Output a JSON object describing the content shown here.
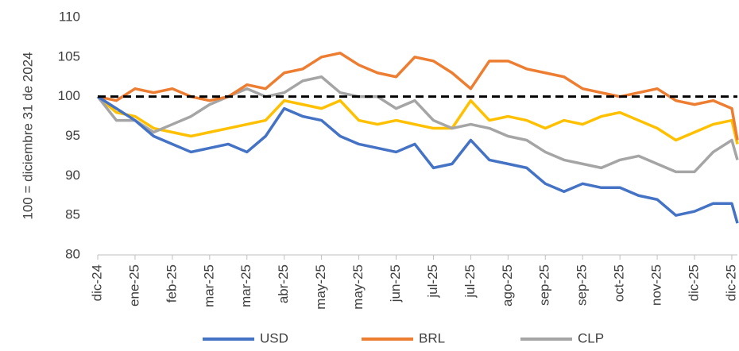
{
  "chart_data": {
    "type": "line",
    "y_label": "100 = diciembre 31 de 2024",
    "x": [
      0,
      0.5,
      1,
      1.5,
      2,
      2.5,
      3,
      3.5,
      4,
      4.5,
      5,
      5.5,
      6,
      6.5,
      7,
      7.5,
      8,
      8.5,
      9,
      9.5,
      10,
      10.5,
      11,
      11.5,
      12,
      12.5,
      13,
      13.5,
      14,
      14.5,
      15,
      15.5,
      16,
      16.5,
      17,
      17.15
    ],
    "xlim": [
      0,
      17.15
    ],
    "xticks": [
      {
        "value": 0,
        "label": "dic-24"
      },
      {
        "value": 1,
        "label": "ene-25"
      },
      {
        "value": 2,
        "label": "feb-25"
      },
      {
        "value": 3,
        "label": "mar-25"
      },
      {
        "value": 4,
        "label": "mar-25"
      },
      {
        "value": 5,
        "label": "abr-25"
      },
      {
        "value": 6,
        "label": "may-25"
      },
      {
        "value": 7,
        "label": "may-25"
      },
      {
        "value": 8,
        "label": "jun-25"
      },
      {
        "value": 9,
        "label": "jul-25"
      },
      {
        "value": 10,
        "label": "jul-25"
      },
      {
        "value": 11,
        "label": "ago-25"
      },
      {
        "value": 12,
        "label": "sep-25"
      },
      {
        "value": 13,
        "label": "sep-25"
      },
      {
        "value": 14,
        "label": "oct-25"
      },
      {
        "value": 15,
        "label": "nov-25"
      },
      {
        "value": 16,
        "label": "dic-25"
      },
      {
        "value": 17,
        "label": "dic-25"
      }
    ],
    "ylim": [
      80,
      110
    ],
    "yticks": [
      80,
      85,
      90,
      95,
      100,
      105,
      110
    ],
    "grid": false,
    "legend": "bottom",
    "reference_line": {
      "value": 100,
      "color": "#000000"
    },
    "series": [
      {
        "color": "#ffc000",
        "values": [
          100,
          98,
          97.5,
          96,
          95.5,
          95,
          95.5,
          96,
          96.5,
          97,
          99.5,
          99,
          98.5,
          99.5,
          97,
          96.5,
          97,
          96.5,
          96,
          96,
          99.5,
          97,
          97.5,
          97,
          96,
          97,
          96.5,
          97.5,
          98,
          97,
          96,
          94.5,
          95.5,
          96.5,
          97,
          94
        ]
      },
      {
        "name": "CLP",
        "color": "#a5a5a5",
        "values": [
          100,
          97,
          97,
          95.5,
          96.5,
          97.5,
          99,
          100,
          101,
          100,
          100.5,
          102,
          102.5,
          100.5,
          100,
          100,
          98.5,
          99.5,
          97,
          96,
          96.5,
          96,
          95,
          94.5,
          93,
          92,
          91.5,
          91,
          92,
          92.5,
          91.5,
          90.5,
          90.5,
          93,
          94.5,
          92
        ]
      },
      {
        "name": "BRL",
        "color": "#ed7d31",
        "values": [
          100,
          99.5,
          101,
          100.5,
          101,
          100,
          99.5,
          100,
          101.5,
          101,
          103,
          103.5,
          105,
          105.5,
          104,
          103,
          102.5,
          105,
          104.5,
          103,
          101,
          104.5,
          104.5,
          103.5,
          103,
          102.5,
          101,
          100.5,
          100,
          100.5,
          101,
          99.5,
          99,
          99.5,
          98.5,
          94.5
        ]
      },
      {
        "name": "USD",
        "color": "#4472c4",
        "values": [
          100,
          98.5,
          97,
          95,
          94,
          93,
          93.5,
          94,
          93,
          95,
          98.5,
          97.5,
          97,
          95,
          94,
          93.5,
          93,
          94,
          91,
          91.5,
          94.5,
          92,
          91.5,
          91,
          89,
          88,
          89,
          88.5,
          88.5,
          87.5,
          87,
          85,
          85.5,
          86.5,
          86.5,
          84
        ]
      }
    ]
  }
}
